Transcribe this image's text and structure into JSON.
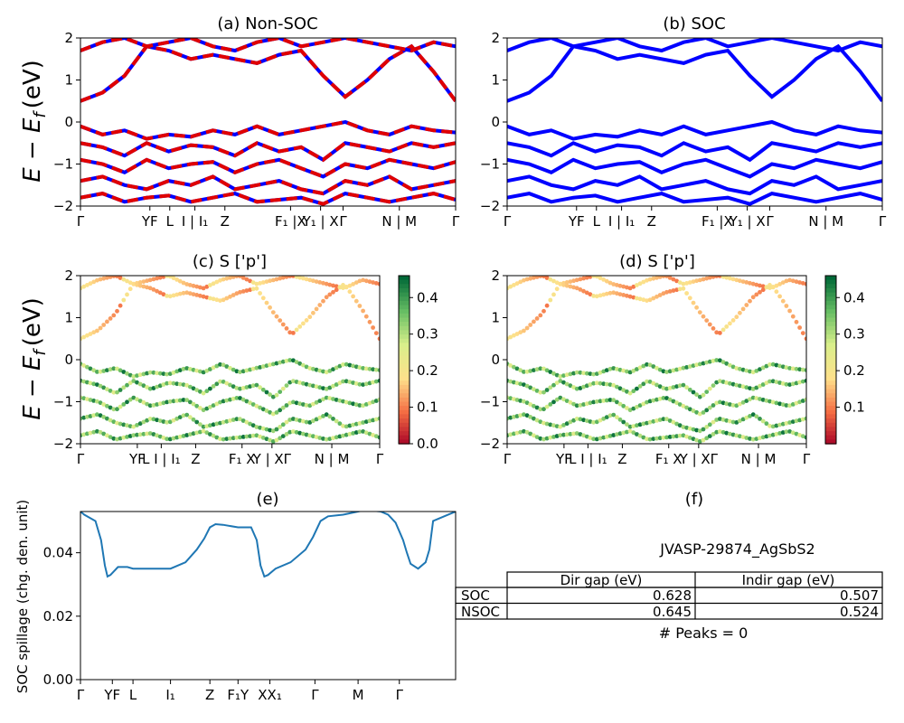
{
  "figure": {
    "panel_titles": {
      "a": "(a) Non-SOC",
      "b": "(b) SOC",
      "c": "(c)  S ['p']",
      "d": "(d) S ['p']",
      "e": "(e)",
      "f": "(f)"
    },
    "ylabel_top": "E − E",
    "ylabel_top_sub": "f",
    "ylabel_top_unit": "(eV)",
    "ylabel_spillage": "SOC spillage (chg. den. unit)",
    "material": "JVASP-29874_AgSbS2",
    "peaks_text": "# Peaks = 0",
    "colors": {
      "nonsoc": "#e00000",
      "soc": "#0000ff",
      "spillage": "#1f77b4"
    }
  },
  "gap_table": {
    "columns": [
      "Dir gap (eV)",
      "Indir gap (eV)"
    ],
    "rows": [
      {
        "label": "SOC",
        "dir": "0.628",
        "indir": "0.507"
      },
      {
        "label": "NSOC",
        "dir": "0.645",
        "indir": "0.524"
      }
    ]
  },
  "chart_data": [
    {
      "id": "a",
      "type": "line",
      "title": "(a) Non-SOC",
      "ylim": [
        -2,
        2
      ],
      "yticks": [
        "2",
        "1",
        "0",
        "−1",
        "−2"
      ],
      "xticks": [
        {
          "label": "Γ",
          "pos": 0
        },
        {
          "label": "YF",
          "pos": 0.185
        },
        {
          "label": "L",
          "pos": 0.238
        },
        {
          "label": "I | I₁",
          "pos": 0.305
        },
        {
          "label": "Z",
          "pos": 0.385
        },
        {
          "label": "F₁ |X",
          "pos": 0.56
        },
        {
          "label": "Y₁ | X",
          "pos": 0.64
        },
        {
          "label": "Γ",
          "pos": 0.7
        },
        {
          "label": "N | M",
          "pos": 0.85
        },
        {
          "label": "Γ",
          "pos": 1.0
        }
      ],
      "series": [
        {
          "values": [
            0.5,
            0.7,
            1.1,
            1.8,
            1.7,
            1.5,
            1.6,
            1.5,
            1.4,
            1.6,
            1.7,
            1.1,
            0.6,
            1.0,
            1.5,
            1.8,
            1.2,
            0.5
          ]
        },
        {
          "values": [
            1.7,
            1.9,
            2.0,
            1.8,
            1.9,
            2.0,
            1.8,
            1.7,
            1.9,
            2.0,
            1.8,
            1.9,
            2.0,
            1.9,
            1.8,
            1.7,
            1.9,
            1.8
          ]
        },
        {
          "values": [
            -0.1,
            -0.3,
            -0.2,
            -0.4,
            -0.3,
            -0.35,
            -0.2,
            -0.3,
            -0.1,
            -0.3,
            -0.2,
            -0.1,
            0.0,
            -0.2,
            -0.3,
            -0.1,
            -0.2,
            -0.25
          ]
        },
        {
          "values": [
            -0.5,
            -0.6,
            -0.8,
            -0.5,
            -0.7,
            -0.55,
            -0.6,
            -0.8,
            -0.5,
            -0.7,
            -0.6,
            -0.9,
            -0.5,
            -0.6,
            -0.7,
            -0.5,
            -0.6,
            -0.5
          ]
        },
        {
          "values": [
            -0.9,
            -1.0,
            -1.2,
            -0.9,
            -1.1,
            -1.0,
            -0.95,
            -1.2,
            -1.0,
            -0.9,
            -1.1,
            -1.3,
            -1.0,
            -1.1,
            -0.9,
            -1.0,
            -1.1,
            -0.95
          ]
        },
        {
          "values": [
            -1.4,
            -1.3,
            -1.5,
            -1.6,
            -1.4,
            -1.5,
            -1.3,
            -1.6,
            -1.5,
            -1.4,
            -1.6,
            -1.7,
            -1.4,
            -1.5,
            -1.3,
            -1.6,
            -1.5,
            -1.4
          ]
        },
        {
          "values": [
            -1.8,
            -1.7,
            -1.9,
            -1.8,
            -1.75,
            -1.9,
            -1.8,
            -1.7,
            -1.9,
            -1.85,
            -1.8,
            -1.95,
            -1.7,
            -1.8,
            -1.9,
            -1.8,
            -1.7,
            -1.85
          ]
        }
      ]
    },
    {
      "id": "b",
      "type": "line",
      "title": "(b) SOC",
      "ylim": [
        -2,
        2
      ],
      "yticks": [
        "2",
        "1",
        "0",
        "−1",
        "−2"
      ],
      "xticks": [
        {
          "label": "Γ",
          "pos": 0
        },
        {
          "label": "YF",
          "pos": 0.185
        },
        {
          "label": "L",
          "pos": 0.238
        },
        {
          "label": "I | I₁",
          "pos": 0.305
        },
        {
          "label": "Z",
          "pos": 0.385
        },
        {
          "label": "F₁ |X",
          "pos": 0.56
        },
        {
          "label": "Y₁ | X",
          "pos": 0.64
        },
        {
          "label": "Γ",
          "pos": 0.7
        },
        {
          "label": "N | M",
          "pos": 0.85
        },
        {
          "label": "Γ",
          "pos": 1.0
        }
      ],
      "series": [
        {
          "values": [
            0.5,
            0.7,
            1.1,
            1.8,
            1.7,
            1.5,
            1.6,
            1.5,
            1.4,
            1.6,
            1.7,
            1.1,
            0.6,
            1.0,
            1.5,
            1.8,
            1.2,
            0.5
          ]
        },
        {
          "values": [
            1.7,
            1.9,
            2.0,
            1.8,
            1.9,
            2.0,
            1.8,
            1.7,
            1.9,
            2.0,
            1.8,
            1.9,
            2.0,
            1.9,
            1.8,
            1.7,
            1.9,
            1.8
          ]
        },
        {
          "values": [
            -0.1,
            -0.3,
            -0.2,
            -0.4,
            -0.3,
            -0.35,
            -0.2,
            -0.3,
            -0.1,
            -0.3,
            -0.2,
            -0.1,
            0.0,
            -0.2,
            -0.3,
            -0.1,
            -0.2,
            -0.25
          ]
        },
        {
          "values": [
            -0.5,
            -0.6,
            -0.8,
            -0.5,
            -0.7,
            -0.55,
            -0.6,
            -0.8,
            -0.5,
            -0.7,
            -0.6,
            -0.9,
            -0.5,
            -0.6,
            -0.7,
            -0.5,
            -0.6,
            -0.5
          ]
        },
        {
          "values": [
            -0.9,
            -1.0,
            -1.2,
            -0.9,
            -1.1,
            -1.0,
            -0.95,
            -1.2,
            -1.0,
            -0.9,
            -1.1,
            -1.3,
            -1.0,
            -1.1,
            -0.9,
            -1.0,
            -1.1,
            -0.95
          ]
        },
        {
          "values": [
            -1.4,
            -1.3,
            -1.5,
            -1.6,
            -1.4,
            -1.5,
            -1.3,
            -1.6,
            -1.5,
            -1.4,
            -1.6,
            -1.7,
            -1.4,
            -1.5,
            -1.3,
            -1.6,
            -1.5,
            -1.4
          ]
        },
        {
          "values": [
            -1.8,
            -1.7,
            -1.9,
            -1.8,
            -1.75,
            -1.9,
            -1.8,
            -1.7,
            -1.9,
            -1.85,
            -1.8,
            -1.95,
            -1.7,
            -1.8,
            -1.9,
            -1.8,
            -1.7,
            -1.85
          ]
        }
      ]
    },
    {
      "id": "c",
      "type": "scatter",
      "title": "(c)  S ['p']",
      "ylim": [
        -2,
        2
      ],
      "yticks": [
        "2",
        "1",
        "0",
        "−1",
        "−2"
      ],
      "xticks": [
        {
          "label": "Γ",
          "pos": 0
        },
        {
          "label": "YF",
          "pos": 0.19
        },
        {
          "label": "L I | I₁",
          "pos": 0.27
        },
        {
          "label": "Z",
          "pos": 0.385
        },
        {
          "label": "F₁ X",
          "pos": 0.54
        },
        {
          "label": "Y | XΓ",
          "pos": 0.64
        },
        {
          "label": "N | M",
          "pos": 0.84
        },
        {
          "label": "Γ",
          "pos": 1.0
        }
      ],
      "colorbar": {
        "range": [
          0.0,
          0.46
        ],
        "ticks": [
          "0.4",
          "0.3",
          "0.2",
          "0.1",
          "0.0"
        ]
      }
    },
    {
      "id": "d",
      "type": "scatter",
      "title": "(d) S ['p']",
      "ylim": [
        -2,
        2
      ],
      "yticks": [
        "2",
        "1",
        "0",
        "−1",
        "−2"
      ],
      "xticks": [
        {
          "label": "Γ",
          "pos": 0
        },
        {
          "label": "YF",
          "pos": 0.19
        },
        {
          "label": "L I | I₁",
          "pos": 0.27
        },
        {
          "label": "Z",
          "pos": 0.385
        },
        {
          "label": "F₁ X",
          "pos": 0.54
        },
        {
          "label": "Y | XΓ",
          "pos": 0.64
        },
        {
          "label": "N | M",
          "pos": 0.84
        },
        {
          "label": "Γ",
          "pos": 1.0
        }
      ],
      "colorbar": {
        "range": [
          0.0,
          0.46
        ],
        "ticks": [
          "0.4",
          "0.3",
          "0.2",
          "0.1"
        ]
      }
    },
    {
      "id": "e",
      "type": "line",
      "title": "(e)",
      "ylabel": "SOC spillage (chg. den. unit)",
      "ylim": [
        0,
        0.053
      ],
      "yticks": [
        "0.04",
        "0.02",
        "0.00"
      ],
      "xticks": [
        {
          "label": "Γ",
          "pos": 0
        },
        {
          "label": "YF",
          "pos": 0.085
        },
        {
          "label": "L",
          "pos": 0.14
        },
        {
          "label": "I₁",
          "pos": 0.24
        },
        {
          "label": "Z",
          "pos": 0.345
        },
        {
          "label": "F₁Y",
          "pos": 0.42
        },
        {
          "label": "XX₁",
          "pos": 0.505
        },
        {
          "label": "Γ",
          "pos": 0.625
        },
        {
          "label": "M",
          "pos": 0.74
        },
        {
          "label": "Γ",
          "pos": 0.85
        }
      ],
      "x": [
        0,
        0.01,
        0.04,
        0.055,
        0.065,
        0.072,
        0.08,
        0.1,
        0.125,
        0.14,
        0.2,
        0.24,
        0.28,
        0.31,
        0.33,
        0.345,
        0.36,
        0.38,
        0.42,
        0.44,
        0.455,
        0.47,
        0.48,
        0.49,
        0.5,
        0.52,
        0.56,
        0.6,
        0.62,
        0.64,
        0.66,
        0.7,
        0.74,
        0.76,
        0.8,
        0.82,
        0.84,
        0.86,
        0.87,
        0.88,
        0.9,
        0.92,
        0.93,
        0.94,
        1.0
      ],
      "values": [
        0.053,
        0.052,
        0.05,
        0.044,
        0.036,
        0.0325,
        0.033,
        0.0355,
        0.0355,
        0.035,
        0.035,
        0.035,
        0.037,
        0.041,
        0.0445,
        0.048,
        0.049,
        0.0488,
        0.048,
        0.048,
        0.048,
        0.044,
        0.036,
        0.0325,
        0.033,
        0.035,
        0.037,
        0.041,
        0.045,
        0.05,
        0.0515,
        0.052,
        0.053,
        0.0535,
        0.053,
        0.052,
        0.0495,
        0.044,
        0.04,
        0.0365,
        0.035,
        0.037,
        0.041,
        0.05,
        0.053
      ]
    }
  ]
}
